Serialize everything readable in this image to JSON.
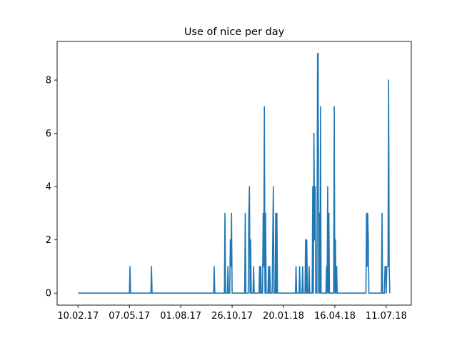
{
  "chart_data": {
    "type": "line",
    "title": "Use of nice per day",
    "xlabel": "",
    "ylabel": "",
    "x_start": "10.02.17",
    "x_end": "17.07.18",
    "xlim": [
      "06.01.17",
      "22.08.18"
    ],
    "ylim": [
      -0.45,
      9.45
    ],
    "x_ticks": [
      "10.02.17",
      "07.05.17",
      "01.08.17",
      "26.10.17",
      "20.01.18",
      "16.04.18",
      "11.07.18"
    ],
    "y_ticks": [
      0,
      2,
      4,
      6,
      8
    ],
    "grid": false,
    "line_color": "#1f77b4",
    "series": [
      {
        "points": [
          [
            "10.02.17",
            0
          ],
          [
            "07.05.17",
            0
          ],
          [
            "08.05.17",
            1
          ],
          [
            "09.05.17",
            0
          ],
          [
            "12.06.17",
            0
          ],
          [
            "13.06.17",
            1
          ],
          [
            "14.06.17",
            0
          ],
          [
            "25.09.17",
            0
          ],
          [
            "26.09.17",
            1
          ],
          [
            "27.09.17",
            0
          ],
          [
            "13.10.17",
            0
          ],
          [
            "14.10.17",
            3
          ],
          [
            "15.10.17",
            0
          ],
          [
            "18.10.17",
            0
          ],
          [
            "19.10.17",
            1
          ],
          [
            "20.10.17",
            0
          ],
          [
            "22.10.17",
            0
          ],
          [
            "23.10.17",
            2
          ],
          [
            "24.10.17",
            1
          ],
          [
            "25.10.17",
            3
          ],
          [
            "26.10.17",
            0
          ],
          [
            "16.11.17",
            0
          ],
          [
            "17.11.17",
            3
          ],
          [
            "18.11.17",
            0
          ],
          [
            "22.11.17",
            0
          ],
          [
            "23.11.17",
            3
          ],
          [
            "24.11.17",
            4
          ],
          [
            "25.11.17",
            0
          ],
          [
            "26.11.17",
            2
          ],
          [
            "27.11.17",
            0
          ],
          [
            "30.11.17",
            0
          ],
          [
            "01.12.17",
            1
          ],
          [
            "02.12.17",
            0
          ],
          [
            "10.12.17",
            0
          ],
          [
            "11.12.17",
            1
          ],
          [
            "12.12.17",
            0
          ],
          [
            "13.12.17",
            1
          ],
          [
            "14.12.17",
            0
          ],
          [
            "16.12.17",
            0
          ],
          [
            "17.12.17",
            3
          ],
          [
            "18.12.17",
            1
          ],
          [
            "19.12.17",
            7
          ],
          [
            "20.12.17",
            0
          ],
          [
            "21.12.17",
            3
          ],
          [
            "22.12.17",
            0
          ],
          [
            "25.12.17",
            0
          ],
          [
            "26.12.17",
            1
          ],
          [
            "27.12.17",
            0
          ],
          [
            "28.12.17",
            1
          ],
          [
            "29.12.17",
            0
          ],
          [
            "01.01.18",
            0
          ],
          [
            "02.01.18",
            2
          ],
          [
            "03.01.18",
            4
          ],
          [
            "04.01.18",
            0
          ],
          [
            "06.01.18",
            0
          ],
          [
            "07.01.18",
            3
          ],
          [
            "08.01.18",
            0
          ],
          [
            "09.01.18",
            3
          ],
          [
            "10.01.18",
            0
          ],
          [
            "09.02.18",
            0
          ],
          [
            "10.02.18",
            1
          ],
          [
            "11.02.18",
            0
          ],
          [
            "15.02.18",
            0
          ],
          [
            "16.02.18",
            1
          ],
          [
            "17.02.18",
            0
          ],
          [
            "20.02.18",
            0
          ],
          [
            "21.02.18",
            1
          ],
          [
            "22.02.18",
            0
          ],
          [
            "25.02.18",
            0
          ],
          [
            "26.02.18",
            2
          ],
          [
            "27.02.18",
            0
          ],
          [
            "28.02.18",
            2
          ],
          [
            "01.03.18",
            0
          ],
          [
            "03.03.18",
            0
          ],
          [
            "04.03.18",
            1
          ],
          [
            "05.03.18",
            0
          ],
          [
            "09.03.18",
            0
          ],
          [
            "10.03.18",
            4
          ],
          [
            "11.03.18",
            0
          ],
          [
            "12.03.18",
            6
          ],
          [
            "13.03.18",
            2
          ],
          [
            "14.03.18",
            4
          ],
          [
            "15.03.18",
            0
          ],
          [
            "17.03.18",
            0
          ],
          [
            "18.03.18",
            9
          ],
          [
            "19.03.18",
            9
          ],
          [
            "20.03.18",
            0
          ],
          [
            "21.03.18",
            3
          ],
          [
            "22.03.18",
            0
          ],
          [
            "23.03.18",
            7
          ],
          [
            "24.03.18",
            0
          ],
          [
            "01.04.18",
            0
          ],
          [
            "02.04.18",
            1
          ],
          [
            "03.04.18",
            0
          ],
          [
            "04.04.18",
            4
          ],
          [
            "05.04.18",
            0
          ],
          [
            "06.04.18",
            3
          ],
          [
            "07.04.18",
            0
          ],
          [
            "14.04.18",
            0
          ],
          [
            "15.04.18",
            7
          ],
          [
            "16.04.18",
            0
          ],
          [
            "17.04.18",
            2
          ],
          [
            "18.04.18",
            0
          ],
          [
            "19.04.18",
            1
          ],
          [
            "20.04.18",
            0
          ],
          [
            "07.06.18",
            0
          ],
          [
            "08.06.18",
            3
          ],
          [
            "09.06.18",
            1
          ],
          [
            "10.06.18",
            3
          ],
          [
            "11.06.18",
            2
          ],
          [
            "12.06.18",
            0
          ],
          [
            "03.07.18",
            0
          ],
          [
            "04.07.18",
            3
          ],
          [
            "05.07.18",
            0
          ],
          [
            "08.07.18",
            0
          ],
          [
            "09.07.18",
            1
          ],
          [
            "10.07.18",
            1
          ],
          [
            "11.07.18",
            0
          ],
          [
            "12.07.18",
            1
          ],
          [
            "13.07.18",
            1
          ],
          [
            "14.07.18",
            1
          ],
          [
            "15.07.18",
            8
          ],
          [
            "16.07.18",
            1
          ],
          [
            "17.07.18",
            0
          ]
        ]
      }
    ]
  }
}
